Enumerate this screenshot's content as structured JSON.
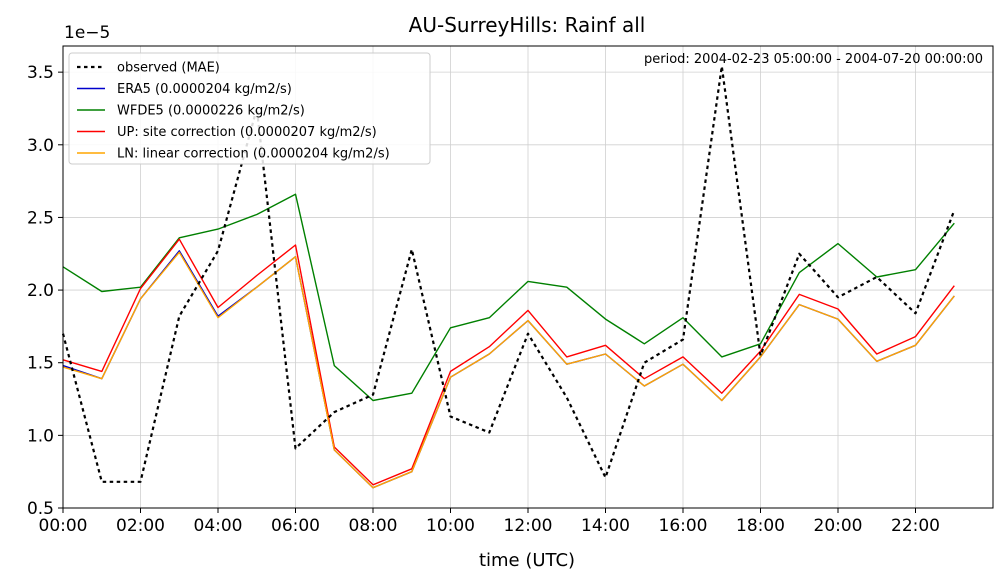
{
  "chart_data": {
    "type": "line",
    "title": "AU-SurreyHills: Rainf all",
    "xlabel": "time (UTC)",
    "ylabel": "",
    "y_multiplier_label": "1e−5",
    "annotation": "period: 2004-02-23 05:00:00 - 2004-07-20 00:00:00",
    "x": [
      0,
      1,
      2,
      3,
      4,
      5,
      6,
      7,
      8,
      9,
      10,
      11,
      12,
      13,
      14,
      15,
      16,
      17,
      18,
      19,
      20,
      21,
      22,
      23
    ],
    "xlim": [
      0,
      24
    ],
    "ylim": [
      0.5,
      3.68
    ],
    "x_ticks": [
      {
        "value": 0,
        "label": "00:00"
      },
      {
        "value": 2,
        "label": "02:00"
      },
      {
        "value": 4,
        "label": "04:00"
      },
      {
        "value": 6,
        "label": "06:00"
      },
      {
        "value": 8,
        "label": "08:00"
      },
      {
        "value": 10,
        "label": "10:00"
      },
      {
        "value": 12,
        "label": "12:00"
      },
      {
        "value": 14,
        "label": "14:00"
      },
      {
        "value": 16,
        "label": "16:00"
      },
      {
        "value": 18,
        "label": "18:00"
      },
      {
        "value": 20,
        "label": "20:00"
      },
      {
        "value": 22,
        "label": "22:00"
      }
    ],
    "y_ticks": [
      {
        "value": 0.5,
        "label": "0.5"
      },
      {
        "value": 1.0,
        "label": "1.0"
      },
      {
        "value": 1.5,
        "label": "1.5"
      },
      {
        "value": 2.0,
        "label": "2.0"
      },
      {
        "value": 2.5,
        "label": "2.5"
      },
      {
        "value": 3.0,
        "label": "3.0"
      },
      {
        "value": 3.5,
        "label": "3.5"
      }
    ],
    "grid": true,
    "legend_position": "top-left",
    "series": [
      {
        "name": "observed (MAE)",
        "color": "#000000",
        "style": "dotted",
        "values": [
          1.7,
          0.68,
          0.68,
          1.82,
          2.27,
          3.25,
          0.91,
          1.16,
          1.28,
          2.28,
          1.13,
          1.02,
          1.7,
          1.26,
          0.71,
          1.5,
          1.66,
          3.54,
          1.55,
          2.25,
          1.95,
          2.09,
          1.84,
          2.55
        ]
      },
      {
        "name": "ERA5 (0.0000204 kg/m2/s)",
        "color": "#0000cc",
        "style": "solid",
        "values": [
          1.48,
          1.39,
          1.94,
          2.27,
          1.82,
          2.02,
          2.23,
          0.9,
          0.64,
          0.75,
          1.4,
          1.56,
          1.79,
          1.49,
          1.56,
          1.34,
          1.49,
          1.24,
          1.54,
          1.9,
          1.8,
          1.51,
          1.62,
          1.96
        ]
      },
      {
        "name": "WFDE5 (0.0000226 kg/m2/s)",
        "color": "#008000",
        "style": "solid",
        "values": [
          2.16,
          1.99,
          2.02,
          2.36,
          2.42,
          2.52,
          2.66,
          1.48,
          1.24,
          1.29,
          1.74,
          1.81,
          2.06,
          2.02,
          1.8,
          1.63,
          1.81,
          1.54,
          1.63,
          2.12,
          2.32,
          2.09,
          2.14,
          2.46
        ]
      },
      {
        "name": "UP: site correction (0.0000207 kg/m2/s)",
        "color": "#ff0000",
        "style": "solid",
        "values": [
          1.52,
          1.44,
          2.01,
          2.35,
          1.88,
          2.1,
          2.31,
          0.92,
          0.66,
          0.77,
          1.44,
          1.61,
          1.86,
          1.54,
          1.62,
          1.39,
          1.54,
          1.29,
          1.58,
          1.97,
          1.87,
          1.56,
          1.68,
          2.03
        ]
      },
      {
        "name": "LN: linear correction (0.0000204 kg/m2/s)",
        "color": "#ffa500",
        "style": "solid",
        "values": [
          1.47,
          1.39,
          1.94,
          2.26,
          1.81,
          2.02,
          2.23,
          0.9,
          0.64,
          0.75,
          1.4,
          1.56,
          1.79,
          1.49,
          1.56,
          1.34,
          1.49,
          1.24,
          1.54,
          1.9,
          1.8,
          1.51,
          1.62,
          1.96
        ]
      }
    ]
  }
}
